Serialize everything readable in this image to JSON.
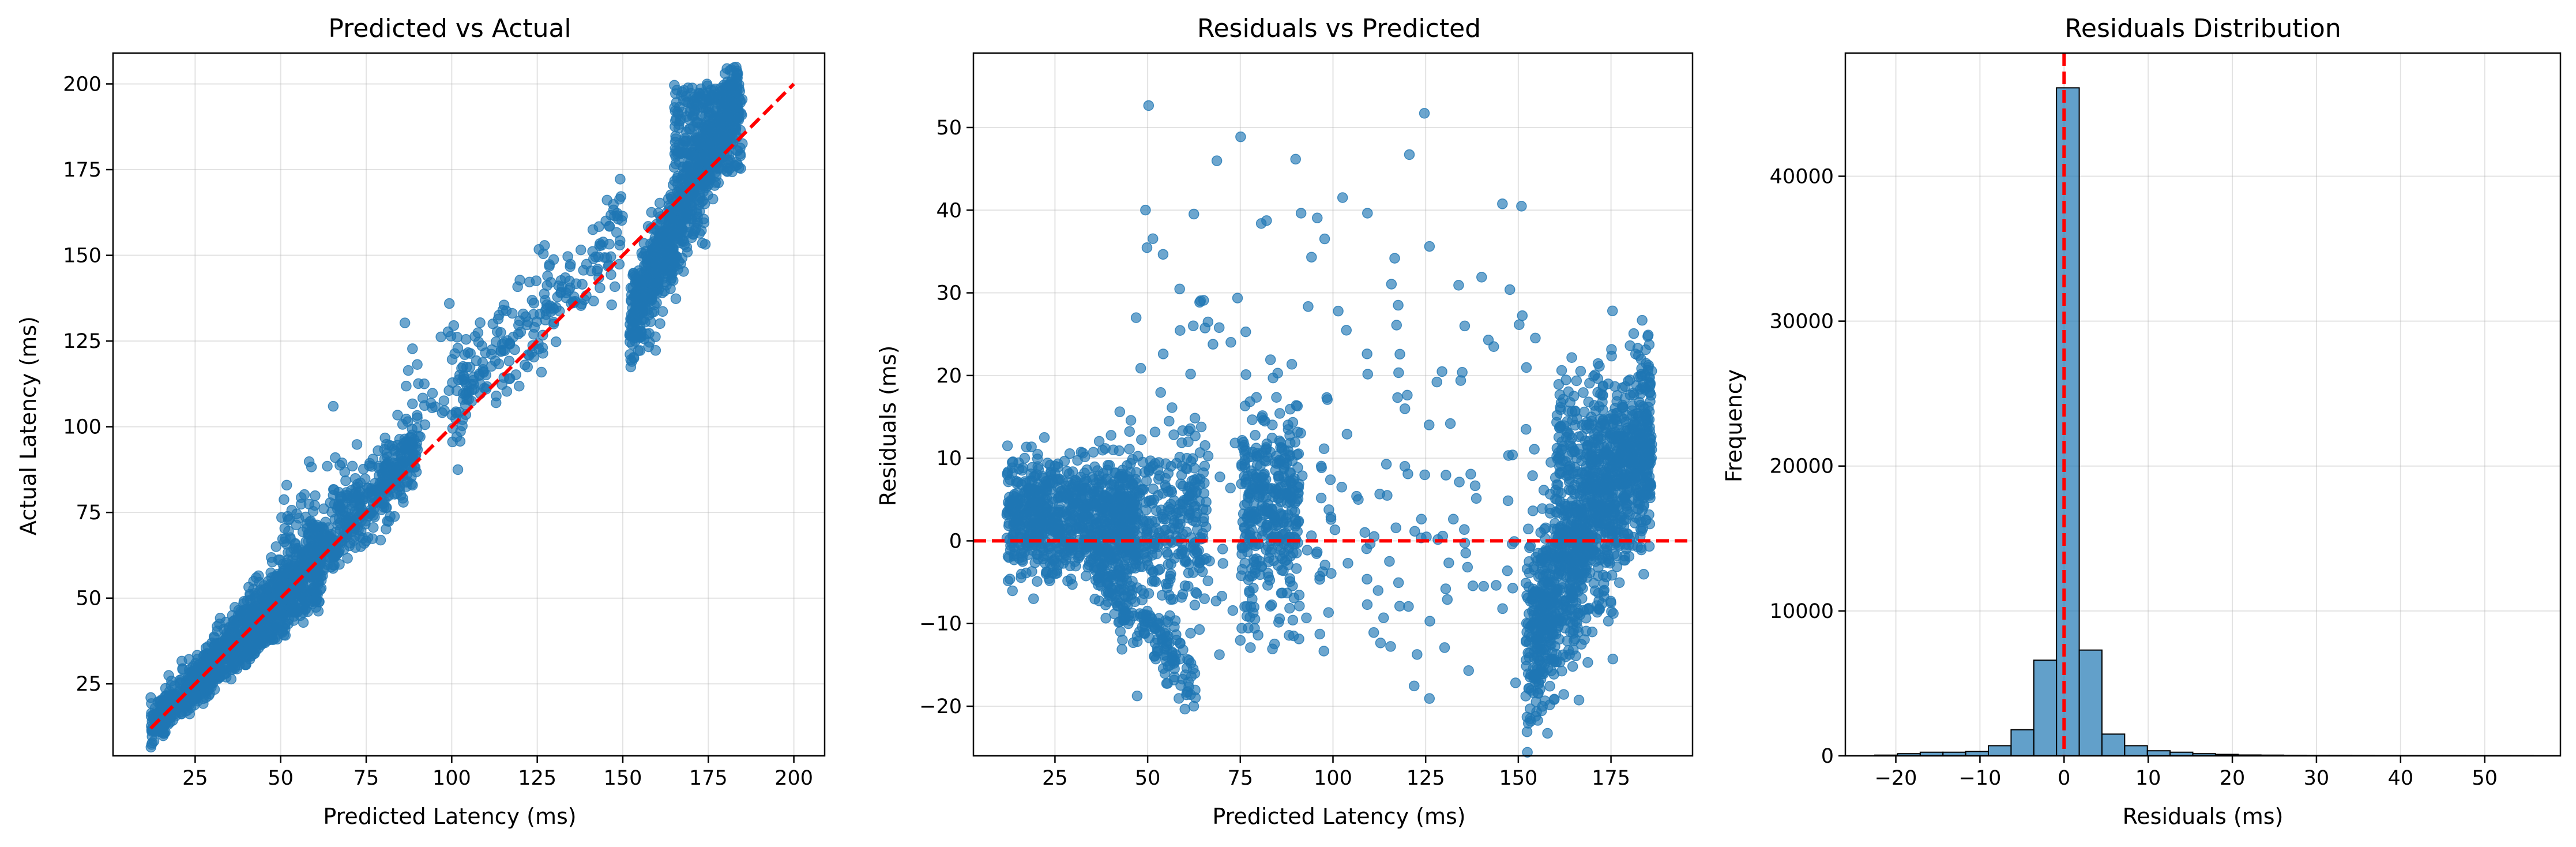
{
  "colors": {
    "points": "#1f77b4",
    "reference": "#ff0000",
    "bars_edge": "#000000"
  },
  "chart_data": [
    {
      "type": "scatter",
      "title": "Predicted vs Actual",
      "xlabel": "Predicted Latency (ms)",
      "ylabel": "Actual Latency (ms)",
      "xlim": [
        1,
        209
      ],
      "ylim": [
        4,
        209
      ],
      "xticks": [
        25,
        50,
        75,
        100,
        125,
        150,
        175,
        200
      ],
      "yticks": [
        25,
        50,
        75,
        100,
        125,
        150,
        175,
        200
      ],
      "grid": true,
      "reference_line": {
        "from": [
          12,
          12
        ],
        "to": [
          200,
          200
        ],
        "style": "dashed"
      },
      "clusters": [
        {
          "x_range": [
            12,
            62
          ],
          "y_range": [
            12,
            66
          ],
          "slope_note": "dense band along diagonal"
        },
        {
          "x_range": [
            60,
            110
          ],
          "y_range": [
            55,
            140
          ],
          "slope_note": "spread above diagonal"
        },
        {
          "x_range": [
            110,
            150
          ],
          "y_range": [
            95,
            185
          ],
          "slope_note": "sparse"
        },
        {
          "x_range": [
            150,
            185
          ],
          "y_range": [
            130,
            200
          ],
          "slope_note": "dense band"
        }
      ]
    },
    {
      "type": "scatter",
      "title": "Residuals vs Predicted",
      "xlabel": "Predicted Latency (ms)",
      "ylabel": "Residuals (ms)",
      "xlim": [
        3,
        197
      ],
      "ylim": [
        -26,
        59
      ],
      "xticks": [
        25,
        50,
        75,
        100,
        125,
        150,
        175
      ],
      "yticks": [
        -20,
        -10,
        0,
        10,
        20,
        30,
        40,
        50
      ],
      "grid": true,
      "reference_line": {
        "y": 0,
        "style": "dashed"
      },
      "clusters": [
        {
          "x_range": [
            12,
            45
          ],
          "y_range": [
            -5,
            12
          ],
          "note": "dense blob"
        },
        {
          "x_range": [
            45,
            65
          ],
          "y_range": [
            -18,
            15
          ],
          "note": "dense with downward tail"
        },
        {
          "x_range": [
            75,
            92
          ],
          "y_range": [
            -15,
            20
          ],
          "note": "vertical band"
        },
        {
          "x_range": [
            150,
            185
          ],
          "y_range": [
            -22,
            20
          ],
          "note": "dense vertical band"
        },
        {
          "x_range": [
            40,
            170
          ],
          "y_range": [
            -15,
            56
          ],
          "note": "sparse outliers"
        }
      ]
    },
    {
      "type": "bar",
      "title": "Residuals Distribution",
      "xlabel": "Residuals (ms)",
      "ylabel": "Frequency",
      "xlim": [
        -26,
        59
      ],
      "ylim": [
        0,
        48500
      ],
      "xticks": [
        -20,
        -10,
        0,
        10,
        20,
        30,
        40,
        50
      ],
      "yticks": [
        0,
        10000,
        20000,
        30000,
        40000
      ],
      "grid": true,
      "reference_line": {
        "x": 0,
        "style": "dashed"
      },
      "bin_edges": [
        -22.5,
        -19.8,
        -17.1,
        -14.4,
        -11.7,
        -9.0,
        -6.3,
        -3.6,
        -0.9,
        1.8,
        4.5,
        7.2,
        9.9,
        12.6,
        15.3,
        18.0,
        20.7,
        23.4,
        26.1,
        28.8,
        31.5,
        34.2,
        36.9,
        39.6,
        42.3,
        45.0,
        47.7,
        50.4,
        53.1,
        55.8
      ],
      "counts": [
        50,
        150,
        250,
        250,
        300,
        700,
        1800,
        6600,
        46100,
        7300,
        1500,
        700,
        350,
        250,
        150,
        100,
        60,
        50,
        40,
        30,
        30,
        25,
        20,
        20,
        15,
        15,
        10,
        10,
        10
      ]
    }
  ]
}
